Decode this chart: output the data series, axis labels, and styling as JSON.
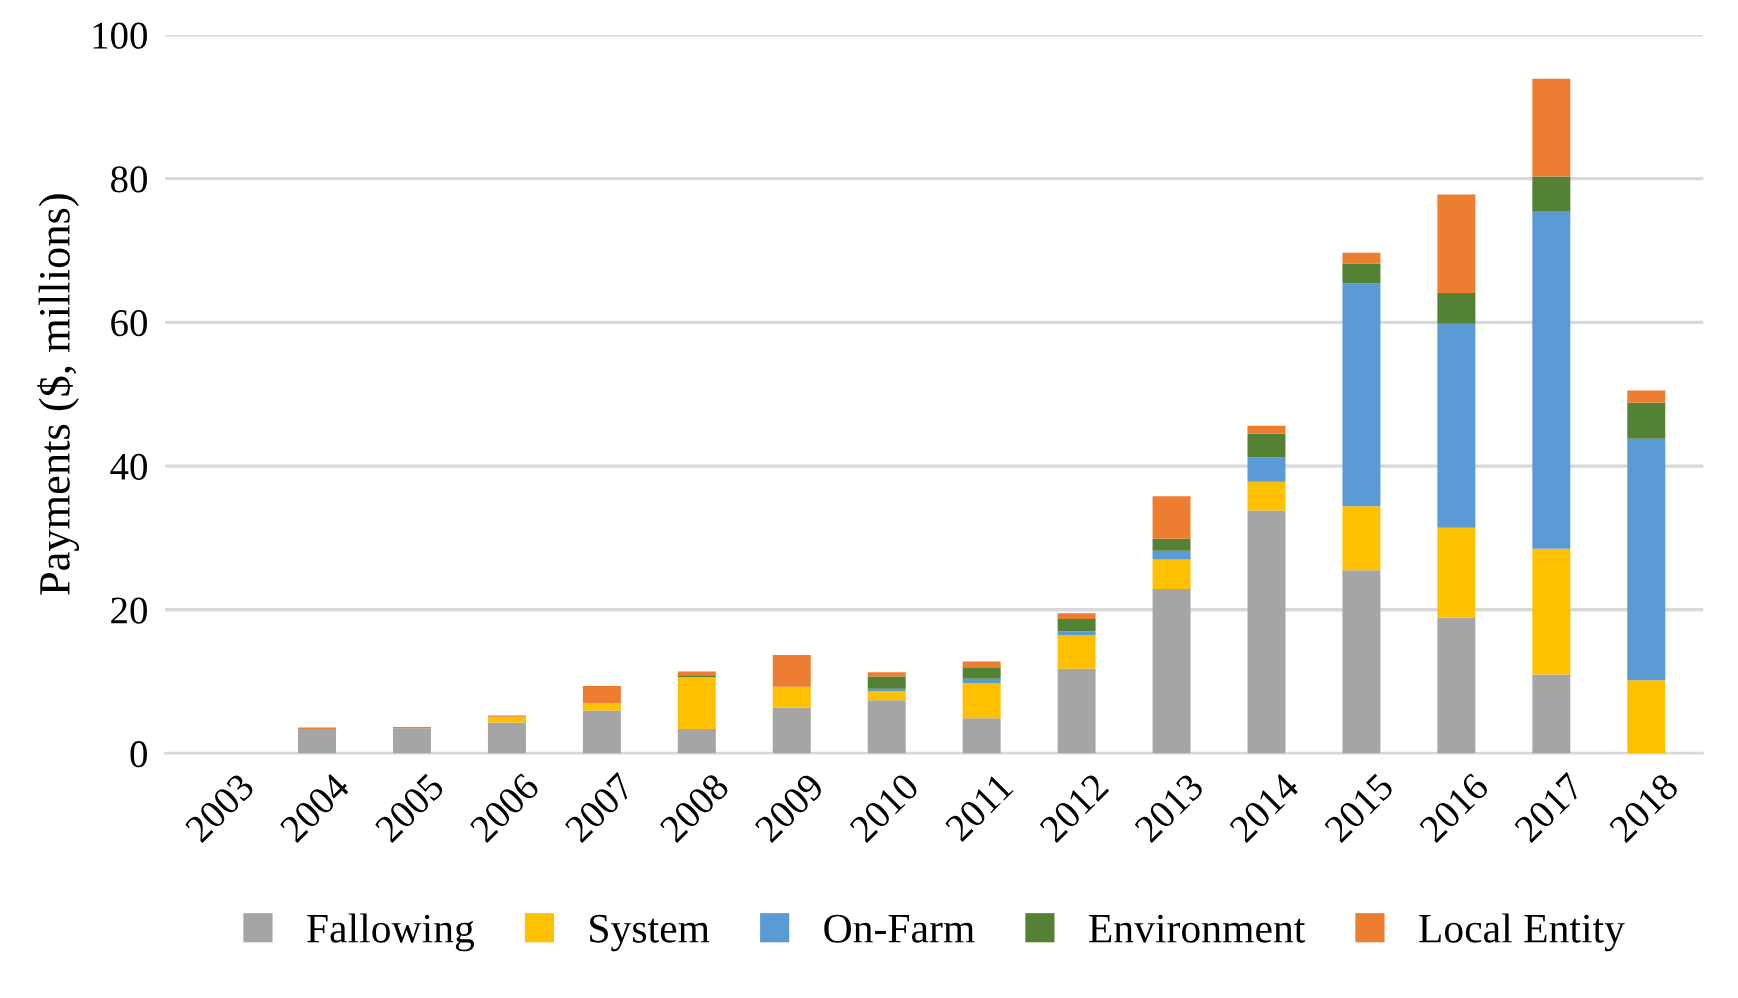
{
  "chart_data": {
    "type": "bar",
    "stacked": true,
    "ylabel": "Payments ($, millions)",
    "categories": [
      "2003",
      "2004",
      "2005",
      "2006",
      "2007",
      "2008",
      "2009",
      "2010",
      "2011",
      "2012",
      "2013",
      "2014",
      "2015",
      "2016",
      "2017",
      "2018"
    ],
    "series": [
      {
        "name": "Fallowing",
        "color": "#a5a5a5",
        "values": [
          0,
          3.4,
          3.5,
          4.3,
          6.0,
          3.4,
          6.4,
          7.4,
          4.9,
          11.8,
          22.9,
          33.8,
          25.5,
          18.9,
          11.0,
          0
        ]
      },
      {
        "name": "System",
        "color": "#ffc000",
        "values": [
          0,
          0,
          0,
          0.8,
          1.0,
          7.2,
          2.9,
          1.3,
          4.9,
          4.7,
          4.1,
          4.0,
          8.9,
          12.5,
          17.5,
          10.2
        ]
      },
      {
        "name": "On-Farm",
        "color": "#5b9bd5",
        "values": [
          0,
          0,
          0,
          0,
          0,
          0,
          0,
          0.3,
          0.6,
          0.5,
          1.2,
          3.4,
          31.0,
          28.4,
          46.9,
          33.6
        ]
      },
      {
        "name": "Environment",
        "color": "#548235",
        "values": [
          0,
          0,
          0,
          0,
          0,
          0.3,
          0,
          1.7,
          1.5,
          1.7,
          1.7,
          3.3,
          2.8,
          4.3,
          4.9,
          5.0
        ]
      },
      {
        "name": "Local Entity",
        "color": "#ed7d31",
        "values": [
          0,
          0.2,
          0.2,
          0.2,
          2.4,
          0.5,
          4.4,
          0.6,
          0.9,
          0.8,
          5.9,
          1.1,
          1.5,
          13.7,
          13.6,
          1.7
        ]
      }
    ],
    "ylim": [
      0,
      100
    ],
    "yticks": [
      0,
      20,
      40,
      60,
      80,
      100
    ],
    "grid": "y",
    "legend": "bottom"
  }
}
